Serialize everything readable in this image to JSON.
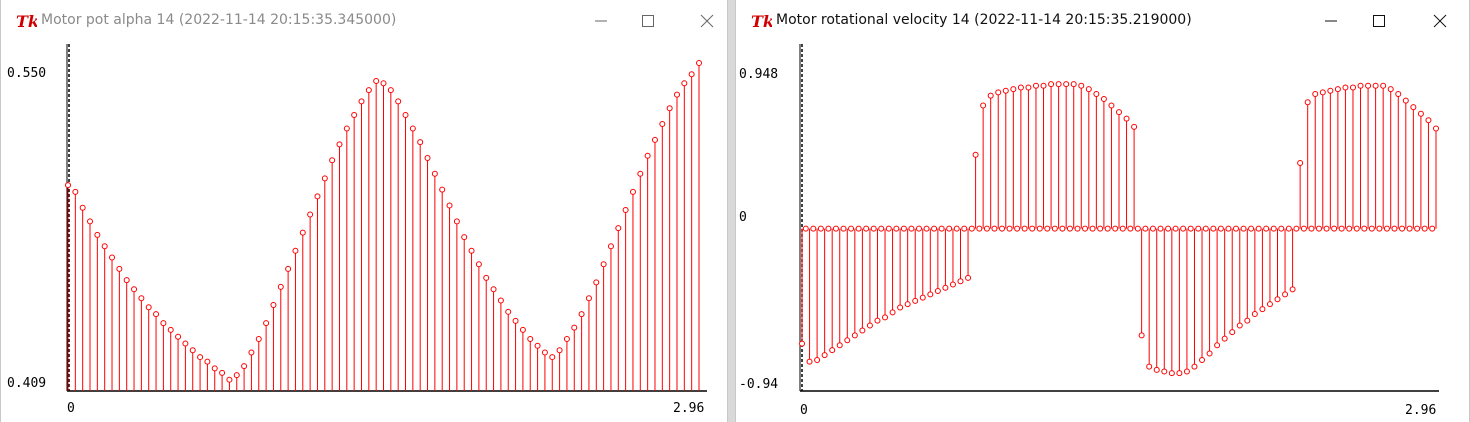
{
  "colors": {
    "stem": "#ff0000",
    "axis": "#000000",
    "title_active": "#111111",
    "title_inactive": "#8a8a8a"
  },
  "windows": [
    {
      "id": "left",
      "title": "Motor pot alpha 14 (2022-11-14 20:15:35.345000)",
      "active": false,
      "icon": "tk-feather-icon",
      "controls": [
        "minimize-icon",
        "maximize-icon",
        "close-icon"
      ],
      "chart_data": {
        "type": "stem",
        "title": "",
        "xlabel": "",
        "ylabel": "",
        "x_range": [
          0,
          2.96
        ],
        "y_range": [
          0.409,
          0.55
        ],
        "x_tick_labels": [
          "0",
          "2.96"
        ],
        "y_tick_labels": [
          "0.550",
          "0.409"
        ],
        "grid": false,
        "values": [
          0.5,
          0.497,
          0.49,
          0.484,
          0.478,
          0.473,
          0.468,
          0.463,
          0.458,
          0.454,
          0.45,
          0.446,
          0.443,
          0.439,
          0.436,
          0.433,
          0.43,
          0.427,
          0.424,
          0.422,
          0.419,
          0.417,
          0.414,
          0.416,
          0.42,
          0.426,
          0.432,
          0.439,
          0.447,
          0.455,
          0.463,
          0.471,
          0.479,
          0.487,
          0.495,
          0.503,
          0.511,
          0.518,
          0.525,
          0.531,
          0.537,
          0.542,
          0.546,
          0.545,
          0.542,
          0.537,
          0.531,
          0.525,
          0.519,
          0.512,
          0.505,
          0.498,
          0.491,
          0.484,
          0.477,
          0.471,
          0.465,
          0.459,
          0.454,
          0.449,
          0.444,
          0.44,
          0.436,
          0.432,
          0.429,
          0.426,
          0.424,
          0.427,
          0.432,
          0.437,
          0.443,
          0.45,
          0.457,
          0.465,
          0.473,
          0.481,
          0.489,
          0.497,
          0.505,
          0.513,
          0.52,
          0.527,
          0.534,
          0.54,
          0.545,
          0.549,
          0.554
        ]
      }
    },
    {
      "id": "right",
      "title": "Motor rotational velocity 14 (2022-11-14 20:15:35.219000)",
      "active": true,
      "icon": "tk-feather-icon",
      "controls": [
        "minimize-icon",
        "maximize-icon",
        "close-icon"
      ],
      "chart_data": {
        "type": "stem",
        "title": "",
        "xlabel": "",
        "ylabel": "",
        "x_range": [
          0,
          2.96
        ],
        "y_range": [
          -0.94,
          0.948
        ],
        "x_tick_labels": [
          "0",
          "2.96"
        ],
        "y_tick_labels": [
          "0.948",
          "0",
          "-0.94"
        ],
        "grid": false,
        "values": [
          -0.7,
          0,
          -0.81,
          0,
          -0.8,
          0,
          -0.77,
          0,
          -0.74,
          0,
          -0.71,
          0,
          -0.68,
          0,
          -0.65,
          0,
          -0.62,
          0,
          -0.59,
          0,
          -0.56,
          0,
          -0.54,
          0,
          -0.51,
          0,
          -0.48,
          0,
          -0.46,
          0,
          -0.44,
          0,
          -0.42,
          0,
          -0.4,
          0,
          -0.38,
          0,
          -0.36,
          0,
          -0.34,
          0,
          -0.32,
          0,
          -0.3,
          0,
          0.45,
          0,
          0.75,
          0,
          0.81,
          0,
          0.83,
          0,
          0.84,
          0,
          0.85,
          0,
          0.86,
          0,
          0.86,
          0,
          0.87,
          0,
          0.87,
          0,
          0.88,
          0,
          0.88,
          0,
          0.88,
          0,
          0.88,
          0,
          0.87,
          0,
          0.85,
          0,
          0.82,
          0,
          0.79,
          0,
          0.75,
          0,
          0.71,
          0,
          0.67,
          0,
          0.62,
          0,
          -0.65,
          0,
          -0.84,
          0,
          -0.86,
          0,
          -0.87,
          0,
          -0.88,
          0,
          -0.88,
          0,
          -0.87,
          0,
          -0.84,
          0,
          -0.8,
          0,
          -0.76,
          0,
          -0.71,
          0,
          -0.67,
          0,
          -0.63,
          0,
          -0.59,
          0,
          -0.56,
          0,
          -0.52,
          0,
          -0.49,
          0,
          -0.46,
          0,
          -0.43,
          0,
          -0.4,
          0,
          -0.37,
          0,
          0.4,
          0,
          0.77,
          0,
          0.82,
          0,
          0.83,
          0,
          0.84,
          0,
          0.85,
          0,
          0.86,
          0,
          0.86,
          0,
          0.87,
          0,
          0.87,
          0,
          0.87,
          0,
          0.87,
          0,
          0.85,
          0,
          0.82,
          0,
          0.78,
          0,
          0.74,
          0,
          0.7,
          0,
          0.66,
          0,
          0.61
        ]
      }
    }
  ]
}
